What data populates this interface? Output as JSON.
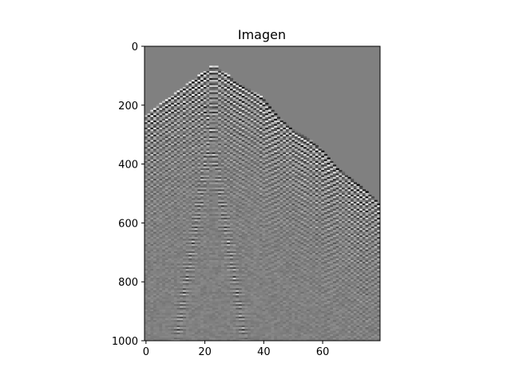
{
  "chart_data": {
    "type": "heatmap",
    "title": "Imagen",
    "xlabel": "",
    "ylabel": "",
    "xlim": [
      -0.5,
      79.5
    ],
    "ylim": [
      1000,
      0
    ],
    "y_inverted": true,
    "x_ticks": [
      0,
      20,
      40,
      60
    ],
    "y_ticks": [
      0,
      200,
      400,
      600,
      800,
      1000
    ],
    "colormap": "gray",
    "grid": false,
    "background_color": "#808080",
    "description_of_content": "",
    "first_arrival_onset": {
      "traces": [
        0,
        5,
        8,
        12,
        16,
        20,
        22,
        24,
        26,
        30,
        35,
        40,
        45,
        50,
        55,
        60,
        65,
        70,
        75,
        79
      ],
      "time_samples": [
        230,
        190,
        170,
        140,
        110,
        80,
        65,
        65,
        80,
        110,
        140,
        175,
        235,
        280,
        310,
        350,
        410,
        450,
        490,
        530
      ]
    }
  }
}
